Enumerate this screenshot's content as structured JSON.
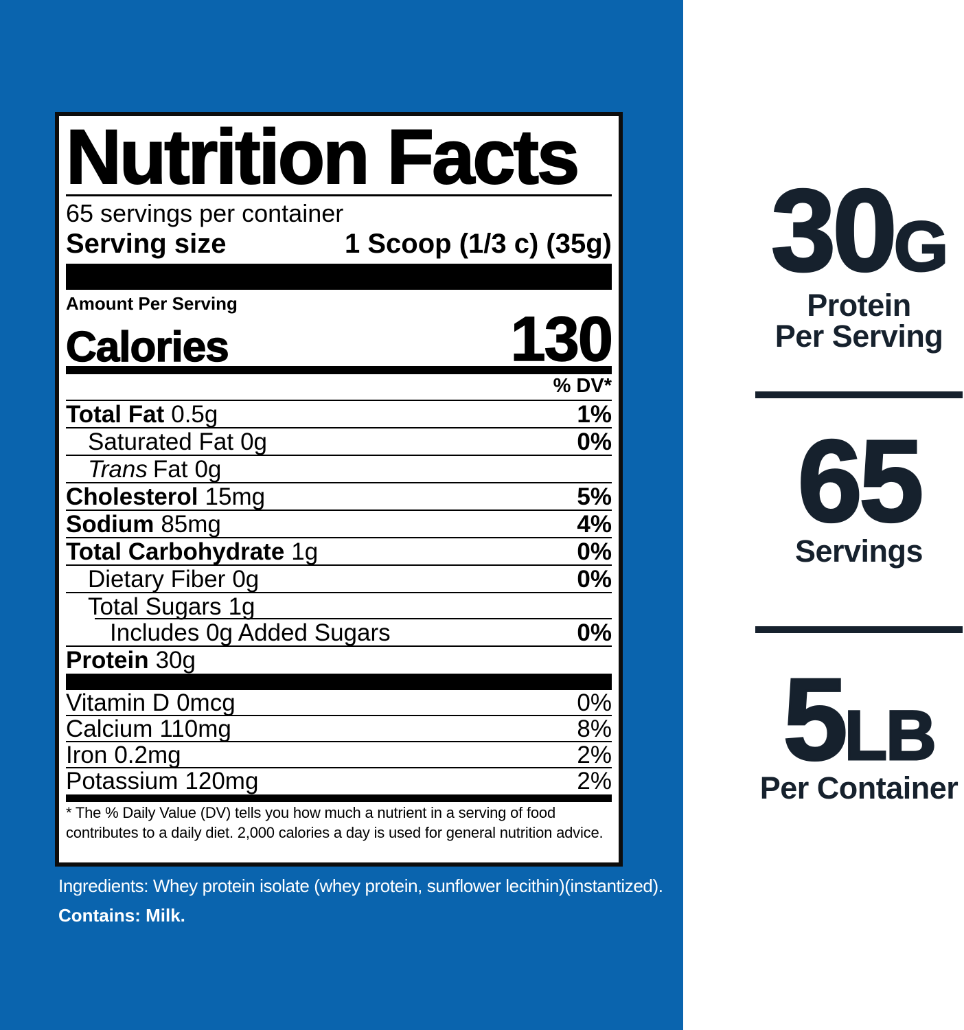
{
  "colors": {
    "panel_blue": "#0A64AE",
    "navy_text": "#16212D",
    "label_black": "#000000"
  },
  "nutrition_label": {
    "title": "Nutrition Facts",
    "servings_per_container": "65 servings per container",
    "serving_size_label": "Serving size",
    "serving_size_value": "1 Scoop (1/3 c) (35g)",
    "amount_per_serving": "Amount Per Serving",
    "calories_label": "Calories",
    "calories_value": "130",
    "dv_header": "% DV*",
    "nutrient_rows": [
      {
        "name": "Total Fat",
        "amount": "0.5g",
        "dv": "1%",
        "bold": true,
        "indent": 0
      },
      {
        "name": "Saturated Fat",
        "amount": "0g",
        "dv": "0%",
        "bold": false,
        "indent": 1
      },
      {
        "name": "Fat",
        "italic_prefix": "Trans",
        "amount": "0g",
        "dv": "",
        "bold": false,
        "indent": 1
      },
      {
        "name": "Cholesterol",
        "amount": "15mg",
        "dv": "5%",
        "bold": true,
        "indent": 0
      },
      {
        "name": "Sodium",
        "amount": "85mg",
        "dv": "4%",
        "bold": true,
        "indent": 0
      },
      {
        "name": "Total Carbohydrate",
        "amount": "1g",
        "dv": "0%",
        "bold": true,
        "indent": 0
      },
      {
        "name": "Dietary Fiber",
        "amount": "0g",
        "dv": "0%",
        "bold": false,
        "indent": 1
      },
      {
        "name": "Total Sugars",
        "amount": "1g",
        "dv": "",
        "bold": false,
        "indent": 1
      },
      {
        "name": "Includes 0g Added Sugars",
        "amount": "",
        "dv": "0%",
        "bold": false,
        "indent": 2,
        "inset_rule": true
      },
      {
        "name": "Protein",
        "amount": "30g",
        "dv": "",
        "bold": true,
        "indent": 0
      }
    ],
    "vitamin_rows": [
      {
        "name": "Vitamin D",
        "amount": "0mcg",
        "dv": "0%"
      },
      {
        "name": "Calcium",
        "amount": "110mg",
        "dv": "8%"
      },
      {
        "name": "Iron",
        "amount": "0.2mg",
        "dv": "2%"
      },
      {
        "name": "Potassium",
        "amount": "120mg",
        "dv": "2%"
      }
    ],
    "footnote": "* The % Daily Value (DV) tells you how much a nutrient in a serving of food contributes to a daily diet. 2,000 calories a day is used for general nutrition advice."
  },
  "ingredients_block": {
    "ingredients_line": "Ingredients: Whey protein isolate (whey protein, sunflower lecithin)(instantized).",
    "contains_line": "Contains: Milk."
  },
  "side_panel": {
    "stats": [
      {
        "value": "30",
        "unit": "G",
        "label_line1": "Protein",
        "label_line2": "Per Serving"
      },
      {
        "value": "65",
        "unit": "",
        "label_line1": "Servings",
        "label_line2": ""
      },
      {
        "value": "5",
        "unit": "LB",
        "label_line1": "Per Container",
        "label_line2": ""
      }
    ]
  }
}
